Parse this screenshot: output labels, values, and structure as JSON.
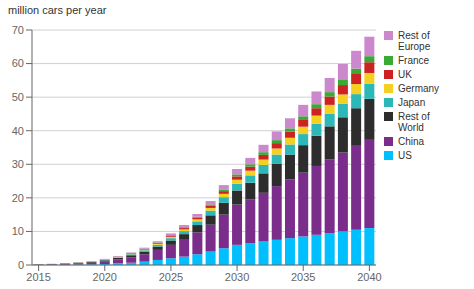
{
  "chart_data": {
    "type": "bar",
    "stacked": true,
    "ylabel": "million cars per year",
    "categories": [
      2015,
      2016,
      2017,
      2018,
      2019,
      2020,
      2021,
      2022,
      2023,
      2024,
      2025,
      2026,
      2027,
      2028,
      2029,
      2030,
      2031,
      2032,
      2033,
      2034,
      2035,
      2036,
      2037,
      2038,
      2039,
      2040
    ],
    "series": [
      {
        "name": "US",
        "color": "#00bfff",
        "values": [
          0.03,
          0.05,
          0.1,
          0.15,
          0.2,
          0.3,
          0.5,
          0.7,
          1.0,
          1.5,
          2.0,
          2.5,
          3.2,
          4.0,
          5.0,
          6.0,
          6.5,
          7.0,
          7.5,
          8.0,
          8.5,
          9.0,
          9.5,
          10.0,
          10.5,
          11.0
        ]
      },
      {
        "name": "China",
        "color": "#7b2d8b",
        "values": [
          0.1,
          0.15,
          0.25,
          0.35,
          0.5,
          0.8,
          1.2,
          1.6,
          2.2,
          3.0,
          4.0,
          5.0,
          6.5,
          8.0,
          10.0,
          12.0,
          13.0,
          14.5,
          16.0,
          17.5,
          19.0,
          20.5,
          22.0,
          23.5,
          25.0,
          26.5
        ]
      },
      {
        "name": "Rest of\nWorld",
        "color": "#2d2d2d",
        "values": [
          0.05,
          0.07,
          0.1,
          0.15,
          0.2,
          0.3,
          0.4,
          0.6,
          0.8,
          1.0,
          1.3,
          1.7,
          2.2,
          2.8,
          3.5,
          4.2,
          5.0,
          5.8,
          6.6,
          7.4,
          8.2,
          9.0,
          9.8,
          10.5,
          11.2,
          12.0
        ]
      },
      {
        "name": "Japan",
        "color": "#2db8b8",
        "values": [
          0.02,
          0.03,
          0.05,
          0.07,
          0.1,
          0.15,
          0.2,
          0.3,
          0.4,
          0.5,
          0.7,
          0.9,
          1.1,
          1.4,
          1.7,
          2.0,
          2.2,
          2.5,
          2.8,
          3.0,
          3.3,
          3.6,
          3.8,
          4.0,
          4.2,
          4.5
        ]
      },
      {
        "name": "Germany",
        "color": "#f5d020",
        "values": [
          0.01,
          0.02,
          0.03,
          0.04,
          0.05,
          0.08,
          0.1,
          0.15,
          0.2,
          0.3,
          0.4,
          0.5,
          0.6,
          0.8,
          1.0,
          1.2,
          1.4,
          1.6,
          1.8,
          2.0,
          2.2,
          2.4,
          2.6,
          2.8,
          3.0,
          3.2
        ]
      },
      {
        "name": "UK",
        "color": "#cc2222",
        "values": [
          0.01,
          0.01,
          0.02,
          0.03,
          0.04,
          0.06,
          0.08,
          0.12,
          0.16,
          0.22,
          0.3,
          0.4,
          0.5,
          0.65,
          0.8,
          1.0,
          1.2,
          1.4,
          1.6,
          1.8,
          2.0,
          2.2,
          2.5,
          2.8,
          3.0,
          3.2
        ]
      },
      {
        "name": "France",
        "color": "#3aaa35",
        "values": [
          0.01,
          0.01,
          0.02,
          0.02,
          0.03,
          0.04,
          0.06,
          0.08,
          0.1,
          0.15,
          0.2,
          0.25,
          0.3,
          0.4,
          0.5,
          0.6,
          0.7,
          0.8,
          0.9,
          1.0,
          1.1,
          1.2,
          1.3,
          1.5,
          1.6,
          1.8
        ]
      },
      {
        "name": "Rest of\nEurope",
        "color": "#cc88cc",
        "values": [
          0.02,
          0.03,
          0.04,
          0.06,
          0.08,
          0.1,
          0.15,
          0.2,
          0.3,
          0.4,
          0.5,
          0.65,
          0.8,
          1.0,
          1.3,
          1.6,
          1.9,
          2.2,
          2.6,
          3.0,
          3.4,
          3.8,
          4.2,
          4.8,
          5.3,
          5.8
        ]
      }
    ],
    "ylim": [
      0,
      70
    ],
    "yticks": [
      0,
      10,
      20,
      30,
      40,
      50,
      60,
      70
    ],
    "xticks": [
      2015,
      2020,
      2025,
      2030,
      2035,
      2040
    ],
    "grid": true,
    "legend": "right"
  }
}
